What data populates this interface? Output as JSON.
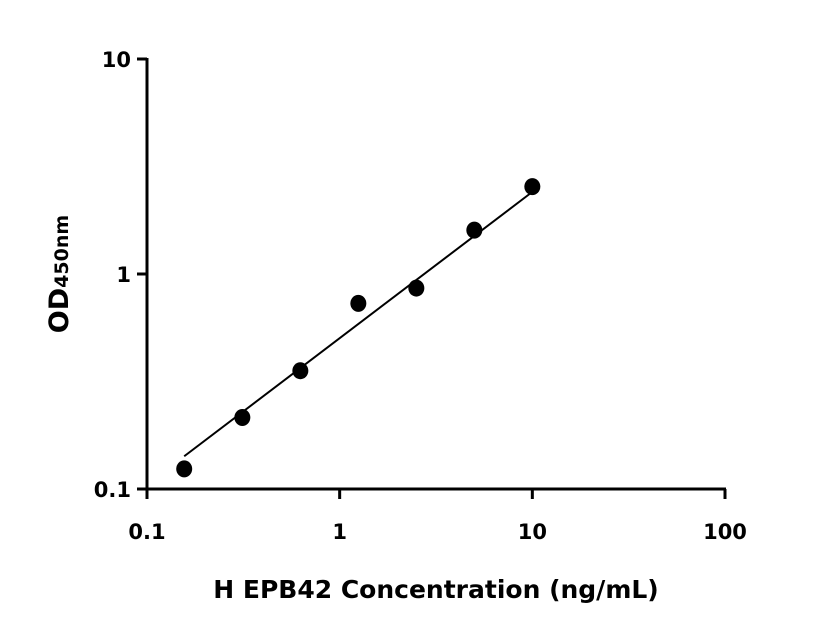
{
  "chart_data": {
    "type": "scatter",
    "title": "",
    "xlabel": "H EPB42 Concentration (ng/mL)",
    "ylabel_main": "OD",
    "ylabel_sub": "450nm",
    "x_scale": "log",
    "y_scale": "log",
    "xlim": [
      0.1,
      100
    ],
    "ylim": [
      0.1,
      10
    ],
    "x_ticks": [
      0.1,
      1,
      10,
      100
    ],
    "x_tick_labels": [
      "0.1",
      "1",
      "10",
      "100"
    ],
    "y_ticks": [
      0.1,
      1,
      10
    ],
    "y_tick_labels": [
      "0.1",
      "1",
      "10"
    ],
    "grid": false,
    "legend": "none",
    "marker_color": "#000000",
    "series": [
      {
        "x": [
          0.156,
          0.3125,
          0.625,
          1.25,
          2.5,
          5,
          10
        ],
        "y": [
          0.124,
          0.215,
          0.355,
          0.73,
          0.86,
          1.6,
          2.55
        ]
      }
    ],
    "fit_line": {
      "x": [
        0.156,
        10
      ],
      "y": [
        0.142,
        2.41
      ]
    }
  }
}
